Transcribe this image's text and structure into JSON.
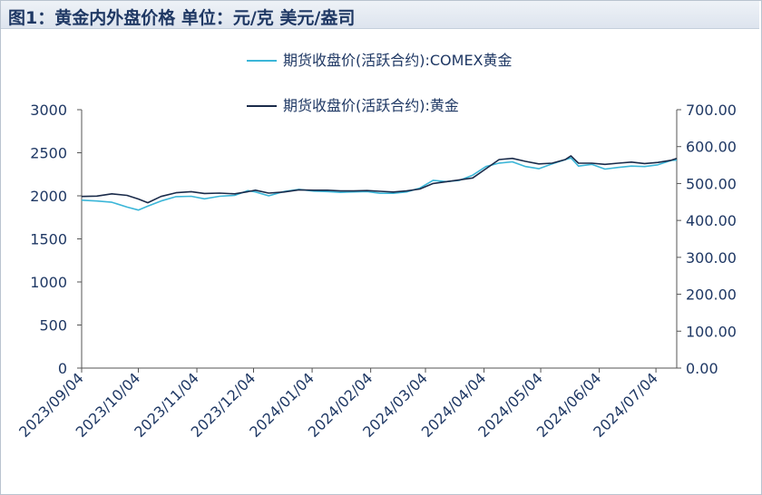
{
  "title": "图1：黄金内外盘价格  单位：元/克 美元/盎司",
  "chart_data": {
    "type": "line",
    "legend_placement": "top-center",
    "grid": false,
    "left_axis": {
      "ylim": [
        0,
        3000
      ],
      "ticks": [
        "0",
        "500",
        "1000",
        "1500",
        "2000",
        "2500",
        "3000"
      ]
    },
    "right_axis": {
      "ylim": [
        0,
        700
      ],
      "ticks": [
        "0.00",
        "100.00",
        "200.00",
        "300.00",
        "400.00",
        "500.00",
        "600.00",
        "700.00"
      ]
    },
    "x_range": [
      "2023-09-04",
      "2024-07-15"
    ],
    "x_ticks": [
      "2023/09/04",
      "2023/10/04",
      "2023/11/04",
      "2023/12/04",
      "2024/01/04",
      "2024/02/04",
      "2024/03/04",
      "2024/04/04",
      "2024/05/04",
      "2024/06/04",
      "2024/07/04"
    ],
    "series": [
      {
        "name": "期货收盘价(活跃合约):COMEX黄金",
        "axis": "left",
        "color": "#3bb6d8",
        "x": [
          "2023-09-04",
          "2023-09-12",
          "2023-09-20",
          "2023-09-28",
          "2023-10-04",
          "2023-10-09",
          "2023-10-16",
          "2023-10-24",
          "2023-11-01",
          "2023-11-08",
          "2023-11-16",
          "2023-11-24",
          "2023-12-01",
          "2023-12-05",
          "2023-12-12",
          "2023-12-20",
          "2023-12-28",
          "2024-01-05",
          "2024-01-12",
          "2024-01-19",
          "2024-01-26",
          "2024-02-02",
          "2024-02-09",
          "2024-02-16",
          "2024-02-23",
          "2024-03-01",
          "2024-03-08",
          "2024-03-15",
          "2024-03-22",
          "2024-03-29",
          "2024-04-05",
          "2024-04-12",
          "2024-04-19",
          "2024-04-26",
          "2024-05-03",
          "2024-05-10",
          "2024-05-17",
          "2024-05-20",
          "2024-05-24",
          "2024-05-31",
          "2024-06-07",
          "2024-06-14",
          "2024-06-21",
          "2024-06-28",
          "2024-07-05",
          "2024-07-12",
          "2024-07-15"
        ],
        "values": [
          1950,
          1940,
          1925,
          1870,
          1835,
          1880,
          1940,
          1990,
          1995,
          1965,
          1995,
          2005,
          2060,
          2045,
          2000,
          2050,
          2075,
          2055,
          2050,
          2040,
          2045,
          2050,
          2030,
          2030,
          2045,
          2090,
          2180,
          2165,
          2180,
          2240,
          2340,
          2380,
          2395,
          2340,
          2315,
          2370,
          2420,
          2440,
          2345,
          2365,
          2310,
          2330,
          2345,
          2340,
          2360,
          2410,
          2415
        ]
      },
      {
        "name": "期货收盘价(活跃合约):黄金",
        "axis": "right",
        "color": "#1a2b4a",
        "x": [
          "2023-09-04",
          "2023-09-12",
          "2023-09-20",
          "2023-09-28",
          "2023-10-04",
          "2023-10-09",
          "2023-10-16",
          "2023-10-24",
          "2023-11-01",
          "2023-11-08",
          "2023-11-16",
          "2023-11-24",
          "2023-12-01",
          "2023-12-05",
          "2023-12-12",
          "2023-12-20",
          "2023-12-28",
          "2024-01-05",
          "2024-01-12",
          "2024-01-19",
          "2024-01-26",
          "2024-02-02",
          "2024-02-09",
          "2024-02-16",
          "2024-02-23",
          "2024-03-01",
          "2024-03-08",
          "2024-03-15",
          "2024-03-22",
          "2024-03-29",
          "2024-04-05",
          "2024-04-12",
          "2024-04-19",
          "2024-04-26",
          "2024-05-03",
          "2024-05-10",
          "2024-05-17",
          "2024-05-20",
          "2024-05-24",
          "2024-05-31",
          "2024-06-07",
          "2024-06-14",
          "2024-06-21",
          "2024-06-28",
          "2024-07-05",
          "2024-07-12",
          "2024-07-15"
        ],
        "values": [
          465,
          466,
          472,
          468,
          458,
          448,
          465,
          475,
          478,
          473,
          474,
          472,
          478,
          482,
          474,
          477,
          483,
          482,
          482,
          480,
          480,
          481,
          479,
          477,
          480,
          485,
          500,
          505,
          510,
          515,
          540,
          565,
          568,
          560,
          553,
          555,
          565,
          575,
          555,
          555,
          552,
          555,
          558,
          554,
          557,
          563,
          568
        ]
      }
    ]
  }
}
